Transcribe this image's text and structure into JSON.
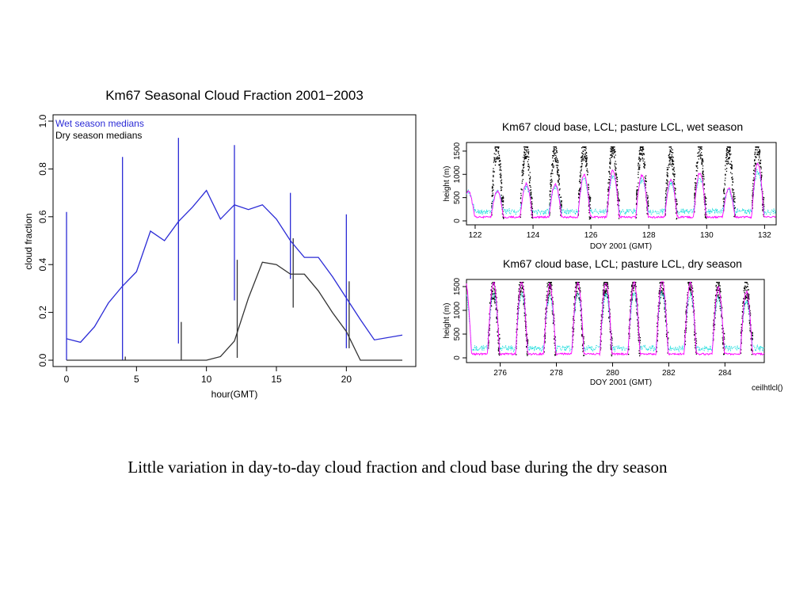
{
  "caption": "Little variation in day-to-day cloud fraction and cloud base during the dry season",
  "colors": {
    "wet": "#2b2bd6",
    "dry": "#333333",
    "lcl": "#ff00ff",
    "pasture": "#00d8d8",
    "points": "#000000"
  },
  "chart_data": [
    {
      "type": "line",
      "title": "Km67 Seasonal Cloud Fraction 2001−2003",
      "xlabel": "hour(GMT)",
      "ylabel": "cloud fraction",
      "xlim": [
        0,
        24
      ],
      "ylim": [
        0,
        1
      ],
      "xticks": [
        0,
        5,
        10,
        15,
        20
      ],
      "yticks": [
        0.0,
        0.2,
        0.4,
        0.6,
        0.8,
        1.0
      ],
      "ytick_labels": [
        "0.0",
        "0.2",
        "0.4",
        "0.6",
        "0.8",
        "1.0"
      ],
      "legend": [
        "Wet season medians",
        "Dry season medians"
      ],
      "legend_position": "top-left",
      "series": [
        {
          "name": "Wet season medians",
          "color": "wet",
          "x": [
            0,
            1,
            2,
            3,
            4,
            5,
            6,
            7,
            8,
            9,
            10,
            11,
            12,
            13,
            14,
            15,
            16,
            17,
            18,
            19,
            20,
            21,
            22,
            24
          ],
          "values": [
            0.09,
            0.075,
            0.14,
            0.24,
            0.31,
            0.37,
            0.54,
            0.5,
            0.58,
            0.64,
            0.71,
            0.59,
            0.65,
            0.63,
            0.65,
            0.59,
            0.5,
            0.43,
            0.43,
            0.35,
            0.26,
            0.17,
            0.085,
            0.105
          ]
        },
        {
          "name": "Dry season medians",
          "color": "dry",
          "x": [
            0,
            1,
            2,
            3,
            4,
            5,
            6,
            7,
            8,
            9,
            10,
            11,
            12,
            13,
            14,
            15,
            16,
            17,
            18,
            19,
            20,
            21,
            22,
            23,
            24
          ],
          "values": [
            0,
            0,
            0,
            0,
            0,
            0,
            0,
            0,
            0,
            0,
            0,
            0.015,
            0.08,
            0.26,
            0.41,
            0.4,
            0.36,
            0.36,
            0.29,
            0.2,
            0.12,
            0,
            0,
            0,
            0
          ]
        }
      ],
      "ranges": [
        {
          "series": "wet",
          "x": 0.0,
          "low": 0.0,
          "high": 0.62
        },
        {
          "series": "wet",
          "x": 4.0,
          "low": 0.0,
          "high": 0.85
        },
        {
          "series": "wet",
          "x": 8.0,
          "low": 0.07,
          "high": 0.93
        },
        {
          "series": "wet",
          "x": 12.0,
          "low": 0.25,
          "high": 0.9
        },
        {
          "series": "wet",
          "x": 16.0,
          "low": 0.34,
          "high": 0.7
        },
        {
          "series": "wet",
          "x": 20.0,
          "low": 0.05,
          "high": 0.61
        },
        {
          "series": "dry",
          "x": 4.2,
          "low": 0.0,
          "high": 0.015
        },
        {
          "series": "dry",
          "x": 8.2,
          "low": 0.0,
          "high": 0.16
        },
        {
          "series": "dry",
          "x": 12.2,
          "low": 0.01,
          "high": 0.42
        },
        {
          "series": "dry",
          "x": 16.2,
          "low": 0.22,
          "high": 0.51
        },
        {
          "series": "dry",
          "x": 20.2,
          "low": 0.05,
          "high": 0.33
        }
      ]
    },
    {
      "type": "scatter",
      "title": "Km67 cloud base, LCL; pasture LCL, wet season",
      "xlabel": "DOY 2001 (GMT)",
      "ylabel": "height (m)",
      "xlim": [
        121.7,
        132.4
      ],
      "ylim": [
        0,
        1600
      ],
      "xticks": [
        122,
        124,
        126,
        128,
        130,
        132
      ],
      "yticks": [
        0,
        500,
        1000,
        1500
      ],
      "cycle_start": 122,
      "lcl_peaks": [
        550,
        700,
        700,
        900,
        1000,
        900,
        800,
        950,
        600,
        1150,
        300
      ],
      "cloud_base_peaks": [
        1600,
        1600,
        1500,
        1600,
        1600,
        1600,
        1450,
        1600,
        1500,
        1600,
        1400
      ],
      "series": [
        {
          "name": "cloud base",
          "color": "points"
        },
        {
          "name": "LCL",
          "color": "lcl"
        },
        {
          "name": "pasture LCL",
          "color": "pasture"
        }
      ]
    },
    {
      "type": "scatter",
      "title": "Km67 cloud base, LCL; pasture LCL, dry season",
      "xlabel": "DOY 2001 (GMT)",
      "ylabel": "height (m)",
      "xlim": [
        274.8,
        285.4
      ],
      "ylim": [
        0,
        1600
      ],
      "xticks": [
        276,
        278,
        280,
        282,
        284
      ],
      "yticks": [
        0,
        500,
        1000,
        1500
      ],
      "cycle_start": 275,
      "lcl_peaks": [
        1500,
        1500,
        1450,
        1500,
        1500,
        1500,
        1550,
        1500,
        1400,
        1300,
        1100
      ],
      "cloud_base_peaks": [
        1500,
        1600,
        1600,
        1600,
        1600,
        1600,
        1600,
        1600,
        1500,
        1500,
        1400
      ],
      "series": [
        {
          "name": "cloud base",
          "color": "points"
        },
        {
          "name": "LCL",
          "color": "lcl"
        },
        {
          "name": "pasture LCL",
          "color": "pasture"
        }
      ]
    }
  ],
  "footer_label": "ceilhtlcl()"
}
